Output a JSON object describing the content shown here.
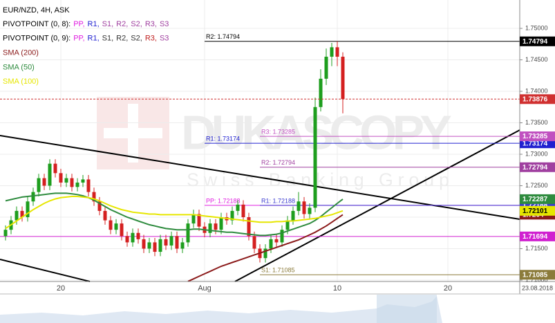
{
  "chart_data": {
    "type": "candlestick",
    "title": "EUR/NZD, 4H, ASK",
    "legend": [
      [
        {
          "text": "PIVOTPOINT (0, 8):",
          "color": "#000000"
        },
        {
          "text": "PP,",
          "color": "#e020e0"
        },
        {
          "text": "R1,",
          "color": "#2020d0"
        },
        {
          "text": "S1,",
          "color": "#a040a0"
        },
        {
          "text": "R2,",
          "color": "#a040a0"
        },
        {
          "text": "S2,",
          "color": "#a040a0"
        },
        {
          "text": "R3,",
          "color": "#a040a0"
        },
        {
          "text": "S3",
          "color": "#a040a0"
        }
      ],
      [
        {
          "text": "PIVOTPOINT (0, 9):",
          "color": "#000000"
        },
        {
          "text": "PP,",
          "color": "#e020e0"
        },
        {
          "text": "R1,",
          "color": "#2020d0"
        },
        {
          "text": "S1,",
          "color": "#333333"
        },
        {
          "text": "R2,",
          "color": "#333333"
        },
        {
          "text": "S2,",
          "color": "#333333"
        },
        {
          "text": "R3,",
          "color": "#c02020"
        },
        {
          "text": "S3",
          "color": "#a040a0"
        }
      ]
    ],
    "watermark": "DUKASCOPY",
    "watermark_sub": "Swiss Banking Group",
    "date": "23.08.2018",
    "up_color": "#1e9e1e",
    "down_color": "#d42020",
    "grid": true,
    "xlim": [
      -1,
      93
    ],
    "xticks": [
      {
        "value": 10,
        "label": "20"
      },
      {
        "value": 36,
        "label": "Aug"
      },
      {
        "value": 60,
        "label": "10"
      },
      {
        "value": 80,
        "label": "20"
      }
    ],
    "ylim": [
      1.70978,
      1.75451
    ],
    "yticks": [
      {
        "value": 1.71,
        "label": "1.71000"
      },
      {
        "value": 1.715,
        "label": "1.71500"
      },
      {
        "value": 1.72,
        "label": "1.72000"
      },
      {
        "value": 1.725,
        "label": "1.72500"
      },
      {
        "value": 1.73,
        "label": "1.73000"
      },
      {
        "value": 1.735,
        "label": "1.73500"
      },
      {
        "value": 1.74,
        "label": "1.74000"
      },
      {
        "value": 1.745,
        "label": "1.74500"
      },
      {
        "value": 1.75,
        "label": "1.75000"
      }
    ],
    "candles": [
      [
        1.717,
        1.7187,
        1.7163,
        1.718
      ],
      [
        1.718,
        1.7202,
        1.7173,
        1.7195
      ],
      [
        1.7195,
        1.7217,
        1.7188,
        1.721
      ],
      [
        1.721,
        1.7217,
        1.7193,
        1.72
      ],
      [
        1.72,
        1.7232,
        1.7193,
        1.7225
      ],
      [
        1.7225,
        1.7247,
        1.7218,
        1.724
      ],
      [
        1.724,
        1.7269,
        1.7233,
        1.7262
      ],
      [
        1.7262,
        1.7269,
        1.7243,
        1.725
      ],
      [
        1.725,
        1.7292,
        1.7243,
        1.7285
      ],
      [
        1.7285,
        1.7292,
        1.7263,
        1.727
      ],
      [
        1.727,
        1.7277,
        1.7248,
        1.7255
      ],
      [
        1.7255,
        1.7269,
        1.7248,
        1.7262
      ],
      [
        1.7262,
        1.7269,
        1.7241,
        1.7248
      ],
      [
        1.7248,
        1.7262,
        1.7241,
        1.7255
      ],
      [
        1.7255,
        1.7267,
        1.7248,
        1.726
      ],
      [
        1.726,
        1.7267,
        1.7233,
        1.724
      ],
      [
        1.724,
        1.7247,
        1.7218,
        1.7225
      ],
      [
        1.7225,
        1.7232,
        1.7203,
        1.721
      ],
      [
        1.721,
        1.7217,
        1.7188,
        1.7195
      ],
      [
        1.7195,
        1.7202,
        1.7173,
        1.718
      ],
      [
        1.718,
        1.7197,
        1.7173,
        1.719
      ],
      [
        1.719,
        1.7197,
        1.7163,
        1.717
      ],
      [
        1.717,
        1.7177,
        1.7153,
        1.716
      ],
      [
        1.716,
        1.7182,
        1.7153,
        1.7175
      ],
      [
        1.7175,
        1.7182,
        1.7158,
        1.7165
      ],
      [
        1.7165,
        1.7172,
        1.7143,
        1.715
      ],
      [
        1.715,
        1.7167,
        1.7143,
        1.716
      ],
      [
        1.716,
        1.7167,
        1.7138,
        1.7145
      ],
      [
        1.7145,
        1.7172,
        1.7138,
        1.7165
      ],
      [
        1.7165,
        1.7172,
        1.7148,
        1.7155
      ],
      [
        1.7155,
        1.7177,
        1.7148,
        1.717
      ],
      [
        1.717,
        1.7177,
        1.7143,
        1.715
      ],
      [
        1.715,
        1.7167,
        1.7143,
        1.716
      ],
      [
        1.716,
        1.7197,
        1.7153,
        1.719
      ],
      [
        1.719,
        1.7212,
        1.7183,
        1.7205
      ],
      [
        1.7205,
        1.7212,
        1.7178,
        1.7185
      ],
      [
        1.7185,
        1.7192,
        1.7168,
        1.7175
      ],
      [
        1.7175,
        1.7197,
        1.7168,
        1.719
      ],
      [
        1.719,
        1.7197,
        1.7173,
        1.718
      ],
      [
        1.718,
        1.7207,
        1.7173,
        1.72
      ],
      [
        1.72,
        1.7207,
        1.7188,
        1.7195
      ],
      [
        1.7195,
        1.7217,
        1.7188,
        1.721
      ],
      [
        1.721,
        1.7227,
        1.7203,
        1.722
      ],
      [
        1.722,
        1.7227,
        1.7193,
        1.72
      ],
      [
        1.72,
        1.7207,
        1.7163,
        1.717
      ],
      [
        1.717,
        1.7177,
        1.7143,
        1.715
      ],
      [
        1.715,
        1.7157,
        1.7128,
        1.7135
      ],
      [
        1.7135,
        1.7157,
        1.7128,
        1.715
      ],
      [
        1.715,
        1.7172,
        1.7143,
        1.7165
      ],
      [
        1.7165,
        1.7172,
        1.7153,
        1.716
      ],
      [
        1.716,
        1.7187,
        1.7153,
        1.718
      ],
      [
        1.718,
        1.7202,
        1.7173,
        1.7195
      ],
      [
        1.7195,
        1.7217,
        1.7188,
        1.721
      ],
      [
        1.721,
        1.724,
        1.7203,
        1.7225
      ],
      [
        1.7225,
        1.7232,
        1.7198,
        1.7205
      ],
      [
        1.7205,
        1.7222,
        1.7198,
        1.7215
      ],
      [
        1.7215,
        1.739,
        1.7208,
        1.7375
      ],
      [
        1.7375,
        1.7435,
        1.7368,
        1.742
      ],
      [
        1.742,
        1.7468,
        1.741,
        1.7455
      ],
      [
        1.7455,
        1.7477,
        1.744,
        1.747
      ],
      [
        1.747,
        1.74794,
        1.744,
        1.7455
      ],
      [
        1.7455,
        1.7462,
        1.7365,
        1.73876
      ]
    ],
    "price_color": "#d03030",
    "series": [
      {
        "name": "SMA (200)",
        "color": "#8b1a1a",
        "values": [
          null,
          null,
          null,
          null,
          null,
          null,
          null,
          null,
          null,
          null,
          null,
          null,
          null,
          null,
          null,
          null,
          null,
          null,
          null,
          null,
          null,
          null,
          null,
          null,
          null,
          null,
          null,
          null,
          null,
          null,
          null,
          null,
          null,
          1.7098,
          1.7102,
          1.7106,
          1.711,
          1.7114,
          1.7118,
          1.7122,
          1.7125,
          1.7128,
          1.7131,
          1.7134,
          1.7137,
          1.714,
          1.7143,
          1.7146,
          1.7149,
          1.7152,
          1.7155,
          1.7158,
          1.7161,
          1.7164,
          1.7168,
          1.7172,
          1.7176,
          1.7181,
          1.7186,
          1.7192,
          1.7198,
          1.7204
        ]
      },
      {
        "name": "SMA (50)",
        "color": "#2e8b3e",
        "values": [
          1.7226,
          1.7228,
          1.723,
          1.7232,
          1.7233,
          1.7234,
          1.7235,
          1.7236,
          1.7237,
          1.7238,
          1.7238,
          1.7238,
          1.7237,
          1.7236,
          1.7234,
          1.7231,
          1.7227,
          1.7222,
          1.7217,
          1.7212,
          1.7208,
          1.7204,
          1.72,
          1.7197,
          1.7194,
          1.7191,
          1.7188,
          1.7186,
          1.7184,
          1.7182,
          1.7181,
          1.718,
          1.718,
          1.718,
          1.7181,
          1.7181,
          1.718,
          1.7179,
          1.7178,
          1.7177,
          1.7176,
          1.7176,
          1.7175,
          1.7174,
          1.7173,
          1.7172,
          1.7171,
          1.7171,
          1.7172,
          1.7173,
          1.7175,
          1.7178,
          1.7181,
          1.7184,
          1.7187,
          1.719,
          1.7195,
          1.7201,
          1.7208,
          1.7215,
          1.7222,
          1.72287
        ]
      },
      {
        "name": "SMA (100)",
        "color": "#e6e600",
        "values": [
          1.7182,
          1.7188,
          1.7194,
          1.72,
          1.7206,
          1.7212,
          1.7217,
          1.7222,
          1.7226,
          1.7229,
          1.7231,
          1.7232,
          1.7233,
          1.7233,
          1.7232,
          1.7231,
          1.7229,
          1.7226,
          1.7222,
          1.7218,
          1.7215,
          1.7212,
          1.721,
          1.7208,
          1.7207,
          1.7206,
          1.7205,
          1.7205,
          1.7204,
          1.7204,
          1.7204,
          1.7204,
          1.7204,
          1.7204,
          1.7204,
          1.7203,
          1.7202,
          1.7201,
          1.72,
          1.7199,
          1.7198,
          1.7197,
          1.7196,
          1.7195,
          1.7194,
          1.7193,
          1.7192,
          1.7192,
          1.7192,
          1.7193,
          1.7193,
          1.7194,
          1.7194,
          1.7195,
          1.7196,
          1.7197,
          1.7198,
          1.72,
          1.7202,
          1.7204,
          1.7207,
          1.72101
        ]
      }
    ],
    "levels": [
      {
        "value": 1.72188,
        "color": "#e020e0",
        "label": "PP: 1.72188",
        "from": 36
      },
      {
        "value": 1.72188,
        "color": "#3c3cd0",
        "label": "R1: 1.72188",
        "from": 46
      },
      {
        "value": 1.71694,
        "color": "#d020d0",
        "from": -1
      },
      {
        "value": 1.71085,
        "color": "#8b7b3a",
        "label": "S1: 1.71085",
        "from": 46
      },
      {
        "value": 1.72794,
        "color": "#a040a0",
        "label": "R2: 1.72794",
        "from": 46
      },
      {
        "value": 1.73174,
        "color": "#2020d0",
        "label": "R1: 1.73174",
        "from": 36
      },
      {
        "value": 1.73285,
        "color": "#c050c0",
        "label": "R3: 1.73285",
        "from": 46
      },
      {
        "value": 1.74794,
        "color": "#000000",
        "label": "R2: 1.74794",
        "from": 36
      }
    ]
  }
}
